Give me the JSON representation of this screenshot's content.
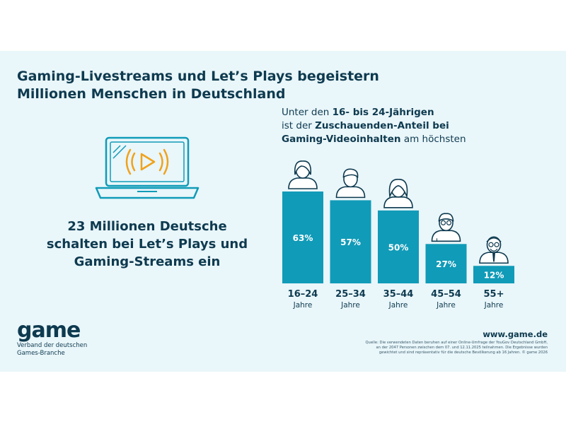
{
  "title": {
    "line1": "Gaming-Livestreams und Let’s Plays begeistern",
    "line2": "Millionen Menschen in Deutschland"
  },
  "headline": {
    "line1": "23 Millionen Deutsche",
    "line2": "schalten bei Let’s Plays und",
    "line3": "Gaming-Streams ein"
  },
  "subhead": {
    "l1_a": "Unter den ",
    "l1_b": "16- bis 24-Jährigen",
    "l2_a": "ist der ",
    "l2_b": "Zuschauenden-Anteil bei",
    "l3_a": "Gaming-Videoinhalten",
    "l3_b": " am höchsten"
  },
  "icons": {
    "laptop": "laptop-play-icon",
    "people": [
      "person-young-woman-icon",
      "person-young-man-icon",
      "person-woman-icon",
      "person-man-glasses-icon",
      "person-senior-man-icon"
    ]
  },
  "colors": {
    "bar": "#109bb8",
    "background_panel": "#e9f6fa",
    "text": "#0e3a4f",
    "accent_orange": "#f0a21b"
  },
  "chart_data": {
    "type": "bar",
    "categories": [
      "16–24",
      "25–34",
      "35–44",
      "45–54",
      "55+"
    ],
    "category_sublabels": [
      "Jahre",
      "Jahre",
      "Jahre",
      "Jahre",
      "Jahre"
    ],
    "values": [
      63,
      57,
      50,
      27,
      12
    ],
    "value_labels": [
      "63%",
      "57%",
      "50%",
      "27%",
      "12%"
    ],
    "unit": "%",
    "ylim": [
      0,
      63
    ],
    "grid": false
  },
  "logo": {
    "word": "game",
    "tag1": "Verband der deutschen",
    "tag2": "Games-Branche"
  },
  "url": "www.game.de",
  "source": {
    "l1": "Quelle: Die verwendeten Daten beruhen auf einer Online-Umfrage der YouGov Deutschland GmbH,",
    "l2": "an der 2047 Personen zwischen dem 07. und 12.11.2025 teilnahmen. Die Ergebnisse wurden",
    "l3": "gewichtet und sind repräsentativ für die deutsche Bevölkerung ab 16 Jahren. © game 2026"
  }
}
